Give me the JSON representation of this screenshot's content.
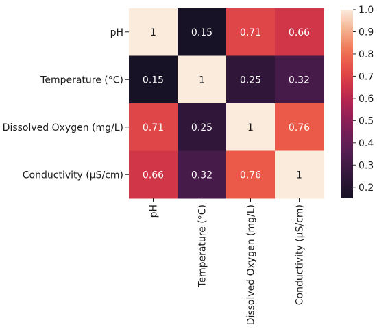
{
  "chart_data": {
    "type": "heatmap",
    "title": "",
    "xlabel": "",
    "ylabel": "",
    "row_labels": [
      "pH",
      "Temperature (°C)",
      "Dissolved Oxygen (mg/L)",
      "Conductivity (µS/cm)"
    ],
    "col_labels": [
      "pH",
      "Temperature (°C)",
      "Dissolved Oxygen (mg/L)",
      "Conductivity (µS/cm)"
    ],
    "values": [
      [
        1,
        0.15,
        0.71,
        0.66
      ],
      [
        0.15,
        1,
        0.25,
        0.32
      ],
      [
        0.71,
        0.25,
        1,
        0.76
      ],
      [
        0.66,
        0.32,
        0.76,
        1
      ]
    ],
    "annotations": [
      [
        "1",
        "0.15",
        "0.71",
        "0.66"
      ],
      [
        "0.15",
        "1",
        "0.25",
        "0.32"
      ],
      [
        "0.71",
        "0.25",
        "1",
        "0.76"
      ],
      [
        "0.66",
        "0.32",
        "0.76",
        "1"
      ]
    ],
    "colorbar": {
      "min": 0.15,
      "max": 1.0,
      "ticks": [
        "0.2",
        "0.3",
        "0.4",
        "0.5",
        "0.6",
        "0.7",
        "0.8",
        "0.9",
        "1.0"
      ],
      "colormap": "rocket"
    },
    "grid": false,
    "legend": "colorbar-right"
  }
}
